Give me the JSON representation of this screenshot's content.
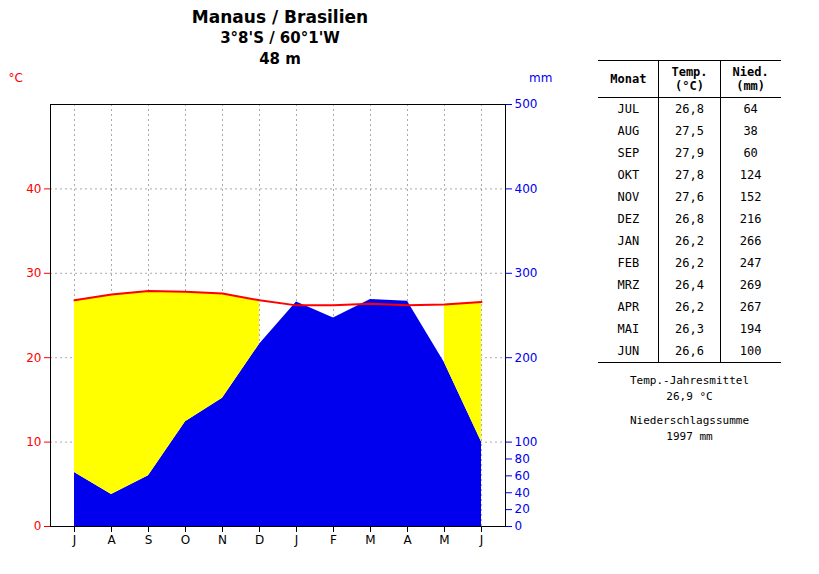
{
  "chart_data": {
    "type": "area",
    "title": "Manaus / Brasilien",
    "subtitle": [
      "3°8'S / 60°1'W",
      "48 m"
    ],
    "categories": [
      "J",
      "A",
      "S",
      "O",
      "N",
      "D",
      "J",
      "F",
      "M",
      "A",
      "M",
      "J"
    ],
    "series": [
      {
        "type": "line",
        "color": "#FF0000",
        "values": [
          26.8,
          27.5,
          27.9,
          27.8,
          27.6,
          26.8,
          26.2,
          26.2,
          26.4,
          26.2,
          26.3,
          26.6
        ]
      },
      {
        "type": "area",
        "axis": "y2",
        "color": "#0000EE",
        "values": [
          64,
          38,
          60,
          124,
          152,
          216,
          266,
          247,
          269,
          267,
          194,
          100
        ]
      }
    ],
    "color": "#FFFF00",
    "ylabel": "°C",
    "y2label": "mm",
    "ylim": [
      0,
      50
    ],
    "yticks": [
      0,
      10,
      20,
      30,
      40
    ],
    "y2lim": [
      0,
      500
    ],
    "y2ticks": [
      0,
      20,
      40,
      60,
      80,
      100,
      200,
      300,
      400,
      500
    ],
    "grid": true,
    "table": {
      "columns": [
        "Monat",
        "Temp.\n(°C)",
        "Nied.\n(mm)"
      ],
      "rows": [
        [
          "JUL",
          "26,8",
          "64"
        ],
        [
          "AUG",
          "27,5",
          "38"
        ],
        [
          "SEP",
          "27,9",
          "60"
        ],
        [
          "OKT",
          "27,8",
          "124"
        ],
        [
          "NOV",
          "27,6",
          "152"
        ],
        [
          "DEZ",
          "26,8",
          "216"
        ],
        [
          "JAN",
          "26,2",
          "266"
        ],
        [
          "FEB",
          "26,2",
          "247"
        ],
        [
          "MRZ",
          "26,4",
          "269"
        ],
        [
          "APR",
          "26,2",
          "267"
        ],
        [
          "MAI",
          "26,3",
          "194"
        ],
        [
          "JUN",
          "26,6",
          "100"
        ]
      ],
      "notes": [
        "Temp.-Jahresmittel",
        "26,9 °C",
        "Niederschlagssumme",
        "1997 mm"
      ]
    }
  }
}
